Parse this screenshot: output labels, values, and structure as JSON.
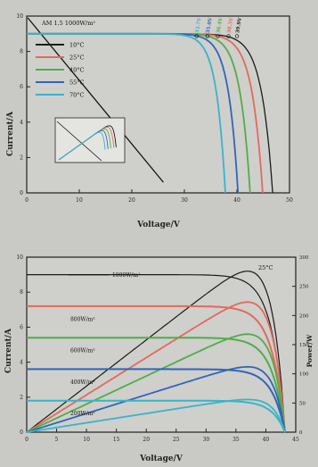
{
  "chart_data": [
    {
      "type": "line",
      "title": "",
      "xlabel": "Voltage/V",
      "ylabel": "Current/A",
      "xlim": [
        0,
        50
      ],
      "ylim": [
        0,
        10
      ],
      "xticks": [
        0,
        10,
        20,
        30,
        40,
        50
      ],
      "yticks": [
        0,
        2,
        4,
        6,
        8,
        10
      ],
      "grid": false,
      "legend_position": "top-left",
      "annotation": "AM 1.5  1000W/m²",
      "isc": 9.0,
      "series": [
        {
          "name": "10°C",
          "color": "#1a1a1a",
          "voc": 46.8,
          "mpp_label": "39.9V"
        },
        {
          "name": "25°C",
          "color": "#e06b5c",
          "voc": 44.9,
          "mpp_label": "38.5V"
        },
        {
          "name": "40°C",
          "color": "#4fae47",
          "voc": 42.5,
          "mpp_label": "36.4V"
        },
        {
          "name": "55°C",
          "color": "#2f66b8",
          "voc": 40.2,
          "mpp_label": "35.0V"
        },
        {
          "name": "70°C",
          "color": "#39b4c9",
          "voc": 37.8,
          "mpp_label": "33.7V"
        }
      ],
      "inset": "P–V curves (zoomed)"
    },
    {
      "type": "line",
      "title": "",
      "xlabel": "Voltage/V",
      "ylabel": "Current/A",
      "y2label": "Power/W",
      "xlim": [
        0,
        45
      ],
      "ylim": [
        0,
        10
      ],
      "y2lim": [
        0,
        300
      ],
      "xticks": [
        0,
        5,
        10,
        15,
        20,
        25,
        30,
        35,
        40,
        45
      ],
      "yticks": [
        0,
        2,
        4,
        6,
        8,
        10
      ],
      "y2ticks": [
        0,
        50,
        100,
        150,
        200,
        250,
        300
      ],
      "grid": false,
      "annotation": "25°C",
      "voc": 43.2,
      "series": [
        {
          "name": "1000W/m²",
          "color": "#1a1a1a",
          "isc": 9.0,
          "pmax": 276
        },
        {
          "name": "800W/m²",
          "color": "#e06b5c",
          "isc": 7.2,
          "pmax": 223
        },
        {
          "name": "600W/m²",
          "color": "#4fae47",
          "isc": 5.4,
          "pmax": 168
        },
        {
          "name": "400W/m²",
          "color": "#2f66b8",
          "isc": 3.6,
          "pmax": 112
        },
        {
          "name": "200W/m²",
          "color": "#39b4c9",
          "isc": 1.8,
          "pmax": 56
        }
      ]
    }
  ]
}
